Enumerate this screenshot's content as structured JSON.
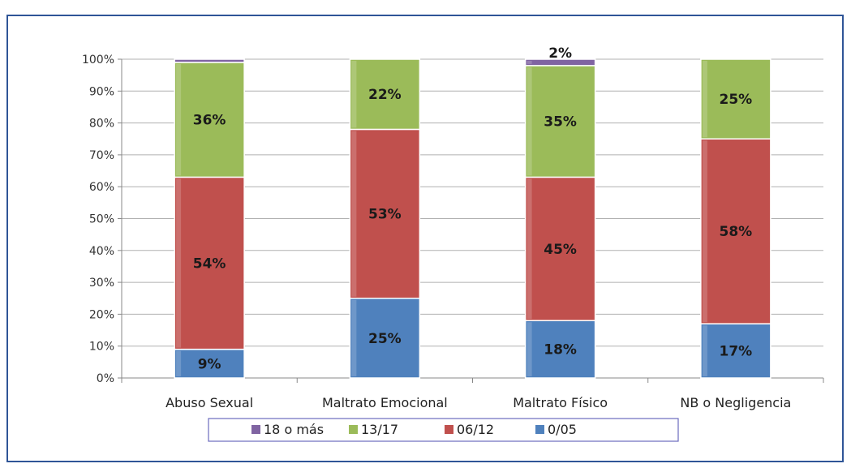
{
  "chart_data": {
    "type": "bar",
    "stacked": true,
    "percent": true,
    "title": "",
    "xlabel": "",
    "ylabel": "",
    "ylim": [
      0,
      100
    ],
    "yticks": [
      "0%",
      "10%",
      "20%",
      "30%",
      "40%",
      "50%",
      "60%",
      "70%",
      "80%",
      "90%",
      "100%"
    ],
    "grid": true,
    "legend_position": "bottom",
    "categories": [
      "Abuso Sexual",
      "Maltrato Emocional",
      "Maltrato Físico",
      "NB  o  Negligencia"
    ],
    "series": [
      {
        "name": "0/05",
        "color": "#4f81bd",
        "values": [
          9,
          25,
          18,
          17
        ],
        "labels": [
          "9%",
          "25%",
          "18%",
          "17%"
        ]
      },
      {
        "name": "06/12",
        "color": "#c0504d",
        "values": [
          54,
          53,
          45,
          58
        ],
        "labels": [
          "54%",
          "53%",
          "45%",
          "58%"
        ]
      },
      {
        "name": "13/17",
        "color": "#9bbb59",
        "values": [
          36,
          22,
          35,
          25
        ],
        "labels": [
          "36%",
          "22%",
          "35%",
          "25%"
        ]
      },
      {
        "name": "18 o más",
        "color": "#8064a2",
        "values": [
          1,
          0,
          2,
          0
        ],
        "labels": [
          "",
          "",
          "2%",
          ""
        ]
      }
    ],
    "legend_order": [
      "18 o más",
      "13/17",
      "06/12",
      "0/05"
    ]
  }
}
